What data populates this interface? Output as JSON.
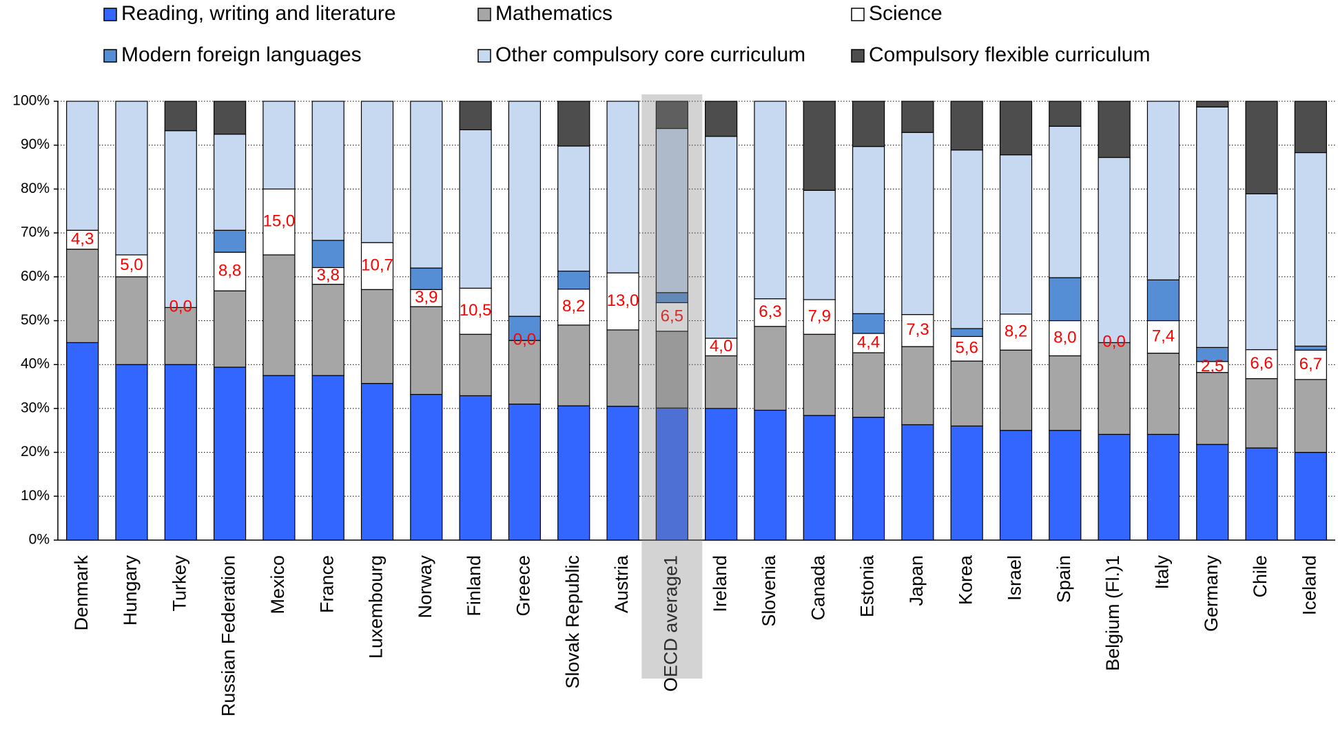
{
  "chart_data": {
    "type": "stacked_bar",
    "categories": [
      "Denmark",
      "Hungary",
      "Turkey",
      "Russian Federation",
      "Mexico",
      "France",
      "Luxembourg",
      "Norway",
      "Finland",
      "Greece",
      "Slovak Republic",
      "Austria",
      "OECD average1",
      "Ireland",
      "Slovenia",
      "Canada",
      "Estonia",
      "Japan",
      "Korea",
      "Israel",
      "Spain",
      "Belgium (Fl.)1",
      "Italy",
      "Germany",
      "Chile",
      "Iceland"
    ],
    "series": [
      {
        "name": "Reading, writing and literature",
        "color": "#3366ff",
        "values": [
          45,
          40,
          40,
          39.4,
          37.5,
          37.5,
          35.7,
          33.2,
          32.9,
          31,
          30.6,
          30.5,
          30.1,
          30,
          29.6,
          28.4,
          28,
          26.3,
          26,
          25,
          25,
          24.1,
          24.1,
          21.8,
          21,
          20
        ]
      },
      {
        "name": "Mathematics",
        "color": "#a6a6a6",
        "values": [
          21.3,
          20,
          13,
          17.4,
          27.5,
          20.8,
          21.4,
          20,
          14,
          14.5,
          18.4,
          17.4,
          17.5,
          12,
          19.1,
          18.5,
          14.7,
          17.8,
          14.8,
          18.3,
          17,
          20.9,
          18.5,
          16.4,
          15.8,
          16.6
        ]
      },
      {
        "name": "Science",
        "color": "#ffffff",
        "values": [
          4.3,
          5.0,
          0.0,
          8.8,
          15.0,
          3.8,
          10.7,
          3.9,
          10.5,
          0.0,
          8.2,
          13.0,
          6.5,
          4.0,
          6.3,
          7.9,
          4.4,
          7.3,
          5.6,
          8.2,
          8.0,
          0.0,
          7.4,
          2.5,
          6.6,
          6.7
        ],
        "value_labels": [
          "4,3",
          "5,0",
          "0,0",
          "8,8",
          "15,0",
          "3,8",
          "10,7",
          "3,9",
          "10,5",
          "0,0",
          "8,2",
          "13,0",
          "6,5",
          "4,0",
          "6,3",
          "7,9",
          "4,4",
          "7,3",
          "5,6",
          "8,2",
          "8,0",
          "0,0",
          "7,4",
          "2,5",
          "6,6",
          "6,7"
        ]
      },
      {
        "name": "Modern foreign languages",
        "color": "#558ed5",
        "values": [
          0,
          0,
          0,
          5.0,
          0,
          6.2,
          0,
          4.9,
          0,
          5.5,
          4.1,
          0,
          2.3,
          0,
          0,
          0,
          4.5,
          0,
          1.8,
          0,
          9.8,
          0,
          9.3,
          3.2,
          0,
          0.9
        ]
      },
      {
        "name": "Other compulsory core curriculum",
        "color": "#c6d9f1",
        "values": [
          29.4,
          35,
          40.3,
          21.9,
          20,
          31.7,
          32.2,
          38,
          36.1,
          49,
          28.5,
          39.1,
          37.4,
          46,
          45,
          24.9,
          38.1,
          41.5,
          40.7,
          36.3,
          34.5,
          42.2,
          40.7,
          54.8,
          35.5,
          44.1
        ]
      },
      {
        "name": "Compulsory flexible curriculum",
        "color": "#4d4d4d",
        "values": [
          0,
          0,
          6.7,
          7.5,
          0,
          0,
          0,
          0,
          6.5,
          0,
          10.2,
          0,
          6.2,
          8,
          0,
          20.3,
          10.3,
          7.1,
          11.1,
          12.2,
          5.7,
          12.8,
          0,
          1.3,
          21.1,
          11.7
        ]
      }
    ],
    "ylim": [
      0,
      100
    ],
    "yticks": [
      {
        "value": 0,
        "label": "0%"
      },
      {
        "value": 10,
        "label": "10%"
      },
      {
        "value": 20,
        "label": "20%"
      },
      {
        "value": 30,
        "label": "30%"
      },
      {
        "value": 40,
        "label": "40%"
      },
      {
        "value": 50,
        "label": "50%"
      },
      {
        "value": 60,
        "label": "60%"
      },
      {
        "value": 70,
        "label": "70%"
      },
      {
        "value": 80,
        "label": "80%"
      },
      {
        "value": 90,
        "label": "90%"
      },
      {
        "value": 100,
        "label": "100%"
      }
    ],
    "grid": true,
    "legend": "top"
  }
}
